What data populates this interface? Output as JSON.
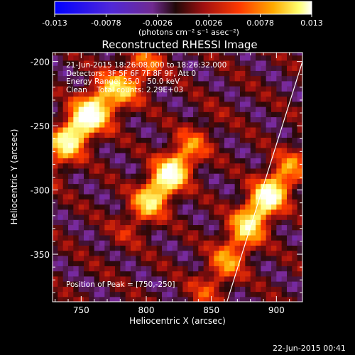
{
  "colorbar": {
    "ticks": [
      "-0.013",
      "-0.0078",
      "-0.0026",
      "0.0026",
      "0.0078",
      "0.013"
    ],
    "unit_label": "(photons cm⁻² s⁻¹ asec⁻²)",
    "colors": [
      "#1010ff",
      "#5a28d0",
      "#7a2a98",
      "#2a0808",
      "#a01010",
      "#ff3a00",
      "#ffaa00",
      "#ffff80",
      "#ffffff"
    ]
  },
  "chart_data": {
    "type": "heatmap",
    "title": "Reconstructed RHESSI Image",
    "xlabel": "Heliocentric X (arcsec)",
    "ylabel": "Heliocentric Y (arcsec)",
    "x_ticks": [
      750,
      800,
      850,
      900
    ],
    "y_ticks": [
      -200,
      -250,
      -300,
      -350
    ],
    "xlim": [
      728,
      920
    ],
    "ylim": [
      -387,
      -193
    ],
    "peak": [
      750,
      -250
    ],
    "limb_line": [
      [
        862,
        -387
      ],
      [
        920,
        -200
      ]
    ],
    "info": {
      "time": "21-Jun-2015 18:26:08.000 to 18:26:32.000",
      "detectors": "Detectors: 3F 5F 6F 7F 8F 9F, Att 0",
      "energy": "Energy Range: 25.0 - 50.0 keV",
      "method": "Clean",
      "counts": "Total counts: 2.29E+03"
    },
    "peak_label": "Position of Peak = [750,-250]"
  },
  "footer": {
    "timestamp": "22-Jun-2015 00:41"
  }
}
